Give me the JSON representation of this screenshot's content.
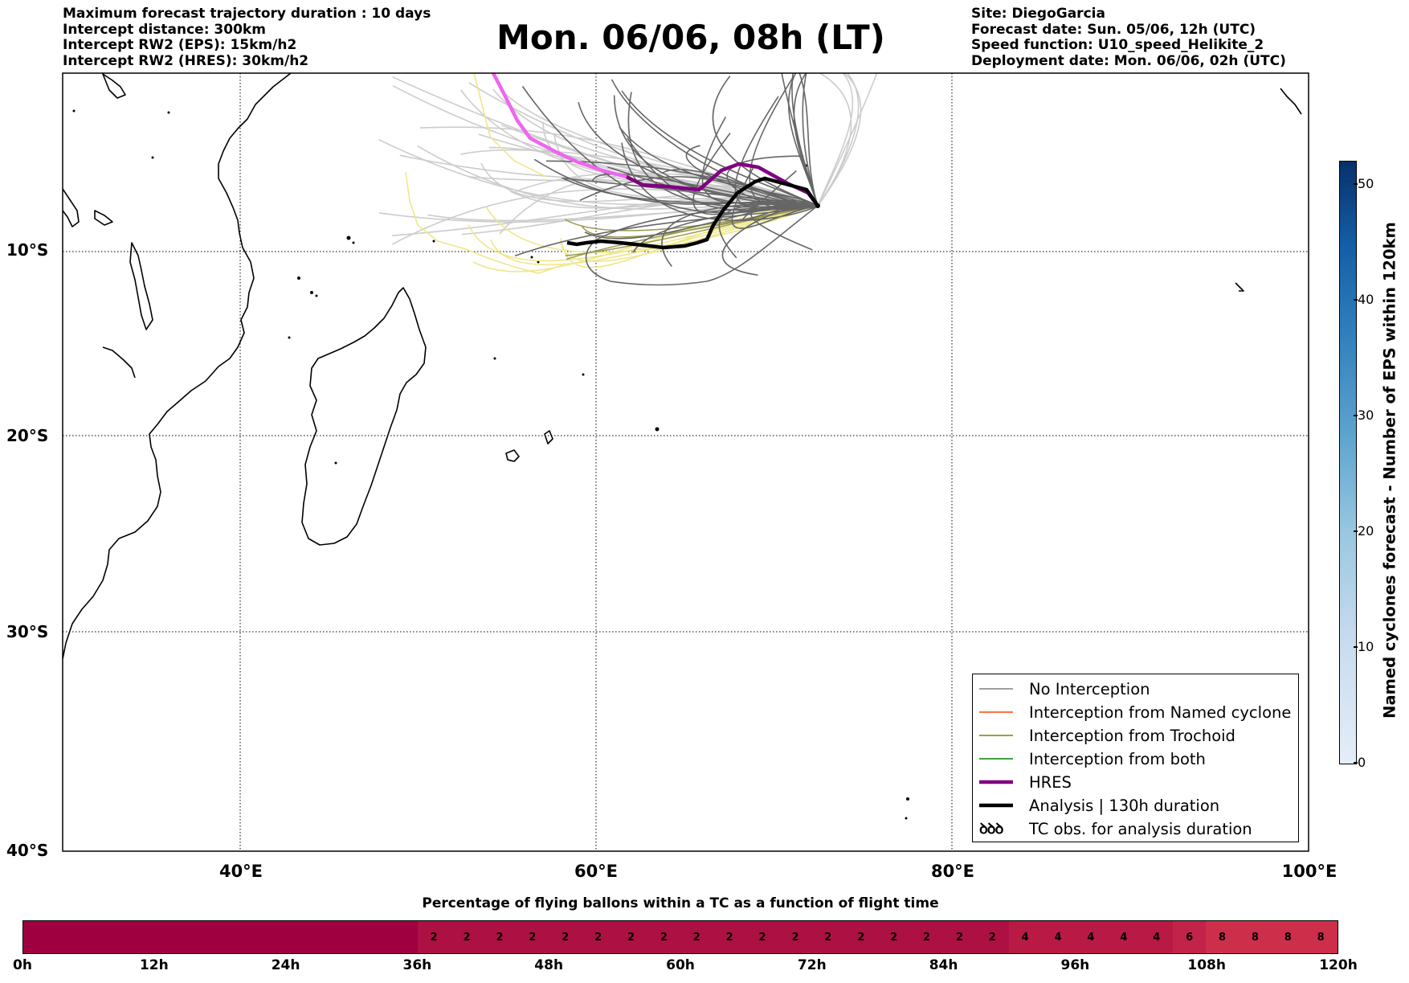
{
  "header_left": [
    "Maximum forecast trajectory duration : 10 days",
    "Intercept distance: 300km",
    "Intercept RW2 (EPS):  15km/h2",
    "Intercept RW2 (HRES): 30km/h2"
  ],
  "title": "Mon. 06/06, 08h (LT)",
  "header_right": [
    "Site: DiegoGarcia",
    "Forecast date: Sun. 05/06, 12h (UTC)",
    "Speed function: U10_speed_Helikite_2",
    "Deployment date: Mon. 06/06, 02h (UTC)"
  ],
  "map": {
    "lat_labels": [
      "10°S",
      "20°S",
      "30°S",
      "40°S"
    ],
    "lon_labels": [
      "40°E",
      "60°E",
      "80°E",
      "100°E"
    ],
    "grid": true,
    "release_site": "DiegoGarcia",
    "trajectory_colors": {
      "no_interception_dark": "#666666",
      "no_interception_light": "#cccccc",
      "trochoid_yellow": "#eee78a",
      "trochoid": "#808000",
      "hres": "#800080",
      "hres_light": "#ee66ee",
      "analysis": "#000000"
    }
  },
  "legend": {
    "placement": "lower-right",
    "items": [
      {
        "label": "No Interception",
        "color": "#808080"
      },
      {
        "label": "Interception from Named cyclone",
        "color": "#ff4500"
      },
      {
        "label": "Interception from Trochoid",
        "color": "#808000"
      },
      {
        "label": "Interception from both",
        "color": "#008000"
      },
      {
        "label": "HRES",
        "color": "#800080"
      },
      {
        "label": "Analysis | 130h duration",
        "color": "#000000"
      },
      {
        "label": "TC obs. for analysis duration",
        "glyph": "ꝺꝺꝺ"
      }
    ]
  },
  "colorbar": {
    "label": "Named cyclones forecast - Number of EPS within 120km",
    "ticks": [
      "0",
      "10",
      "20",
      "30",
      "40",
      "50"
    ],
    "range": [
      0,
      52
    ],
    "colormap": "Blues"
  },
  "chart_data": {
    "type": "heatmap",
    "title": "Percentage of flying ballons within a TC as a function of flight time",
    "x_tick_labels": [
      "0h",
      "12h",
      "24h",
      "36h",
      "48h",
      "60h",
      "72h",
      "84h",
      "96h",
      "108h",
      "120h"
    ],
    "x_range_hours": [
      0,
      120
    ],
    "step_hours": 3,
    "values": [
      0,
      0,
      0,
      0,
      0,
      0,
      0,
      0,
      0,
      0,
      0,
      0,
      2,
      2,
      2,
      2,
      2,
      2,
      2,
      2,
      2,
      2,
      2,
      2,
      2,
      2,
      2,
      2,
      2,
      2,
      4,
      4,
      4,
      4,
      4,
      6,
      8,
      8,
      8,
      8
    ],
    "zero_label_hidden": true,
    "colors": {
      "0": "#9f0040",
      "2": "#ad1043",
      "4": "#b81a45",
      "6": "#c22348",
      "8": "#cd2f4b"
    }
  }
}
